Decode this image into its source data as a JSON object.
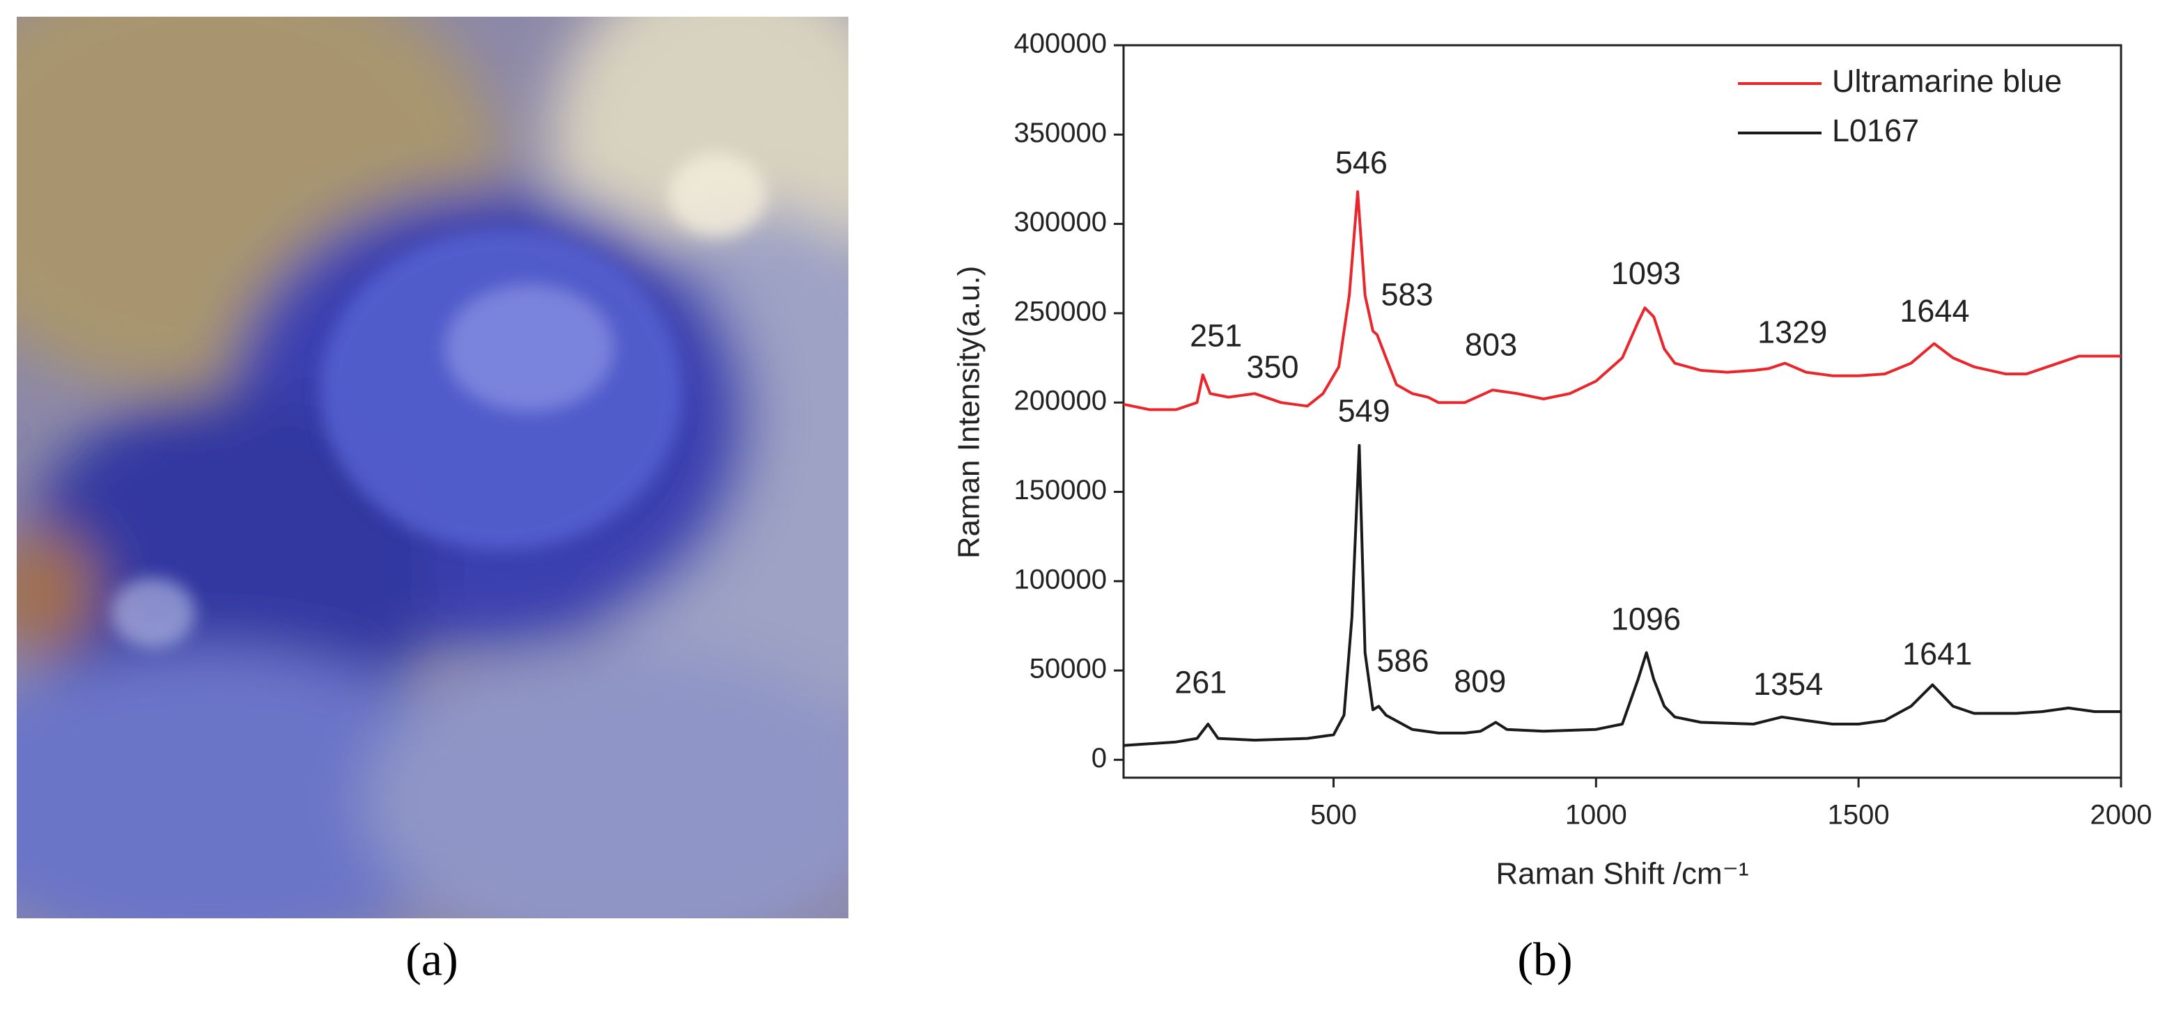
{
  "panel_labels": [
    "(a)",
    "(b)"
  ],
  "chart_data": {
    "type": "line",
    "xlabel": "Raman Shift /cm⁻¹",
    "ylabel": "Raman Intensity(a.u.)",
    "xlim": [
      100,
      2000
    ],
    "ylim": [
      -10000,
      400000
    ],
    "xticks": [
      500,
      1000,
      1500,
      2000
    ],
    "yticks": [
      0,
      50000,
      100000,
      150000,
      200000,
      250000,
      300000,
      350000,
      400000
    ],
    "legend": "upper right",
    "series": [
      {
        "name": "Ultramarine blue",
        "color": "#e8262b",
        "x": [
          100,
          150,
          200,
          240,
          251,
          265,
          300,
          350,
          400,
          450,
          480,
          510,
          530,
          546,
          560,
          575,
          583,
          600,
          620,
          650,
          680,
          700,
          750,
          803,
          850,
          900,
          950,
          1000,
          1050,
          1080,
          1093,
          1110,
          1130,
          1150,
          1200,
          1250,
          1300,
          1329,
          1360,
          1400,
          1450,
          1500,
          1550,
          1600,
          1644,
          1680,
          1720,
          1780,
          1820,
          1880,
          1920,
          2000
        ],
        "values": [
          199000,
          196000,
          196000,
          200000,
          215500,
          205000,
          203000,
          205000,
          200000,
          198000,
          205000,
          220000,
          260000,
          318000,
          260000,
          240000,
          238000,
          225000,
          210000,
          205000,
          203000,
          200000,
          200000,
          207000,
          205000,
          202000,
          205000,
          212000,
          225000,
          245000,
          253000,
          248000,
          230000,
          222000,
          218000,
          217000,
          218000,
          219000,
          222000,
          217000,
          215000,
          215000,
          216000,
          222000,
          233000,
          225000,
          220000,
          216000,
          216000,
          222000,
          226000,
          226000
        ]
      },
      {
        "name": "L0167",
        "color": "#1a1a1a",
        "x": [
          100,
          200,
          240,
          261,
          280,
          350,
          450,
          500,
          520,
          535,
          549,
          560,
          575,
          586,
          600,
          650,
          700,
          750,
          780,
          809,
          830,
          900,
          1000,
          1050,
          1080,
          1096,
          1110,
          1130,
          1150,
          1200,
          1300,
          1354,
          1400,
          1450,
          1500,
          1550,
          1600,
          1641,
          1680,
          1720,
          1800,
          1850,
          1900,
          1950,
          2000
        ],
        "values": [
          8000,
          10000,
          12000,
          20000,
          12000,
          11000,
          12000,
          14000,
          25000,
          80000,
          176000,
          60000,
          28000,
          30000,
          25000,
          17000,
          15000,
          15000,
          16000,
          21000,
          17000,
          16000,
          17000,
          20000,
          45000,
          60000,
          45000,
          30000,
          24000,
          21000,
          20000,
          24000,
          22000,
          20000,
          20000,
          22000,
          30000,
          42000,
          30000,
          26000,
          26000,
          27000,
          29000,
          27000,
          27000
        ]
      }
    ],
    "annotations": [
      {
        "text": "251",
        "x": 276,
        "y": 236000
      },
      {
        "text": "350",
        "x": 384,
        "y": 218600
      },
      {
        "text": "546",
        "x": 553,
        "y": 333000
      },
      {
        "text": "583",
        "x": 640,
        "y": 259000
      },
      {
        "text": "803",
        "x": 800,
        "y": 231000
      },
      {
        "text": "1093",
        "x": 1095,
        "y": 271000
      },
      {
        "text": "1329",
        "x": 1374,
        "y": 238000
      },
      {
        "text": "1644",
        "x": 1645,
        "y": 250000
      },
      {
        "text": "549",
        "x": 558,
        "y": 194000
      },
      {
        "text": "261",
        "x": 247,
        "y": 42000
      },
      {
        "text": "586",
        "x": 632,
        "y": 54000
      },
      {
        "text": "809",
        "x": 779,
        "y": 42600
      },
      {
        "text": "1096",
        "x": 1095,
        "y": 77500
      },
      {
        "text": "1354",
        "x": 1366,
        "y": 41000
      },
      {
        "text": "1641",
        "x": 1650,
        "y": 58000
      }
    ]
  }
}
